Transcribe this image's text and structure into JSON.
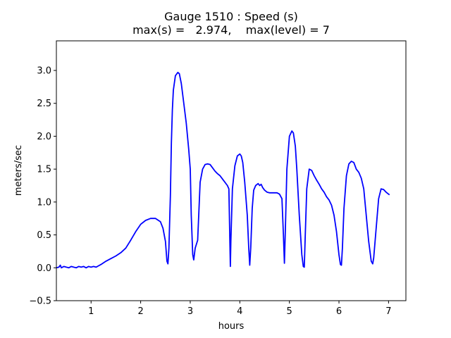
{
  "chart_data": {
    "type": "line",
    "title_line1": "Gauge 1510 : Speed (s)",
    "title_line2": "max(s) =   2.974,    max(level) = 7",
    "xlabel": "hours",
    "ylabel": "meters/sec",
    "xlim": [
      0.3,
      7.35
    ],
    "ylim": [
      -0.5,
      3.45
    ],
    "xticks": [
      1,
      2,
      3,
      4,
      5,
      6,
      7
    ],
    "xtick_labels": [
      "1",
      "2",
      "3",
      "4",
      "5",
      "6",
      "7"
    ],
    "yticks": [
      -0.5,
      0.0,
      0.5,
      1.0,
      1.5,
      2.0,
      2.5,
      3.0
    ],
    "ytick_labels": [
      "−0.5",
      "0.0",
      "0.5",
      "1.0",
      "1.5",
      "2.0",
      "2.5",
      "3.0"
    ],
    "grid": false,
    "line_color": "#0000ff",
    "series": [
      {
        "x": [
          0.3,
          0.35,
          0.38,
          0.4,
          0.45,
          0.5,
          0.55,
          0.6,
          0.65,
          0.7,
          0.75,
          0.8,
          0.85,
          0.9,
          0.95,
          1.0,
          1.05,
          1.1,
          1.15,
          1.2,
          1.3,
          1.4,
          1.5,
          1.6,
          1.7,
          1.8,
          1.9,
          2.0,
          2.1,
          2.2,
          2.3,
          2.4,
          2.45,
          2.5,
          2.53,
          2.55,
          2.57,
          2.6,
          2.62,
          2.64,
          2.66,
          2.7,
          2.75,
          2.78,
          2.82,
          2.87,
          2.92,
          2.97,
          3.0,
          3.02,
          3.05,
          3.07,
          3.1,
          3.15,
          3.2,
          3.25,
          3.3,
          3.35,
          3.4,
          3.45,
          3.5,
          3.55,
          3.6,
          3.65,
          3.7,
          3.75,
          3.78,
          3.8,
          3.81,
          3.82,
          3.85,
          3.9,
          3.95,
          4.0,
          4.03,
          4.06,
          4.1,
          4.15,
          4.18,
          4.2,
          4.22,
          4.25,
          4.28,
          4.32,
          4.37,
          4.4,
          4.43,
          4.46,
          4.5,
          4.55,
          4.6,
          4.65,
          4.7,
          4.75,
          4.8,
          4.85,
          4.88,
          4.9,
          4.92,
          4.95,
          5.0,
          5.05,
          5.08,
          5.12,
          5.15,
          5.2,
          5.25,
          5.28,
          5.3,
          5.32,
          5.35,
          5.4,
          5.45,
          5.5,
          5.55,
          5.6,
          5.65,
          5.7,
          5.75,
          5.8,
          5.85,
          5.9,
          5.95,
          6.0,
          6.03,
          6.05,
          6.07,
          6.1,
          6.15,
          6.2,
          6.25,
          6.3,
          6.35,
          6.4,
          6.45,
          6.5,
          6.55,
          6.6,
          6.65,
          6.68,
          6.7,
          6.75,
          6.8,
          6.85,
          6.9,
          6.95,
          7.0,
          7.02
        ],
        "y": [
          0.0,
          0.01,
          0.04,
          0.0,
          0.02,
          0.01,
          0.0,
          0.02,
          0.01,
          0.0,
          0.02,
          0.01,
          0.02,
          0.0,
          0.02,
          0.01,
          0.02,
          0.01,
          0.03,
          0.05,
          0.1,
          0.14,
          0.18,
          0.23,
          0.3,
          0.42,
          0.55,
          0.66,
          0.72,
          0.75,
          0.75,
          0.7,
          0.6,
          0.4,
          0.1,
          0.06,
          0.3,
          1.1,
          1.9,
          2.4,
          2.7,
          2.92,
          2.97,
          2.95,
          2.8,
          2.5,
          2.2,
          1.8,
          1.5,
          0.8,
          0.2,
          0.12,
          0.3,
          0.42,
          1.3,
          1.5,
          1.57,
          1.58,
          1.57,
          1.52,
          1.47,
          1.43,
          1.4,
          1.35,
          1.3,
          1.25,
          1.2,
          0.4,
          0.02,
          0.4,
          1.2,
          1.55,
          1.7,
          1.73,
          1.7,
          1.6,
          1.3,
          0.8,
          0.3,
          0.04,
          0.3,
          0.9,
          1.18,
          1.25,
          1.28,
          1.25,
          1.27,
          1.22,
          1.18,
          1.15,
          1.14,
          1.14,
          1.14,
          1.14,
          1.12,
          1.05,
          0.5,
          0.07,
          0.6,
          1.5,
          2.0,
          2.08,
          2.05,
          1.85,
          1.5,
          0.8,
          0.2,
          0.02,
          0.01,
          0.5,
          1.2,
          1.5,
          1.48,
          1.4,
          1.33,
          1.27,
          1.2,
          1.15,
          1.08,
          1.03,
          0.95,
          0.8,
          0.55,
          0.2,
          0.05,
          0.04,
          0.3,
          0.9,
          1.4,
          1.58,
          1.62,
          1.6,
          1.5,
          1.45,
          1.36,
          1.2,
          0.8,
          0.4,
          0.1,
          0.06,
          0.15,
          0.6,
          1.05,
          1.2,
          1.19,
          1.15,
          1.12,
          1.11
        ]
      }
    ]
  }
}
